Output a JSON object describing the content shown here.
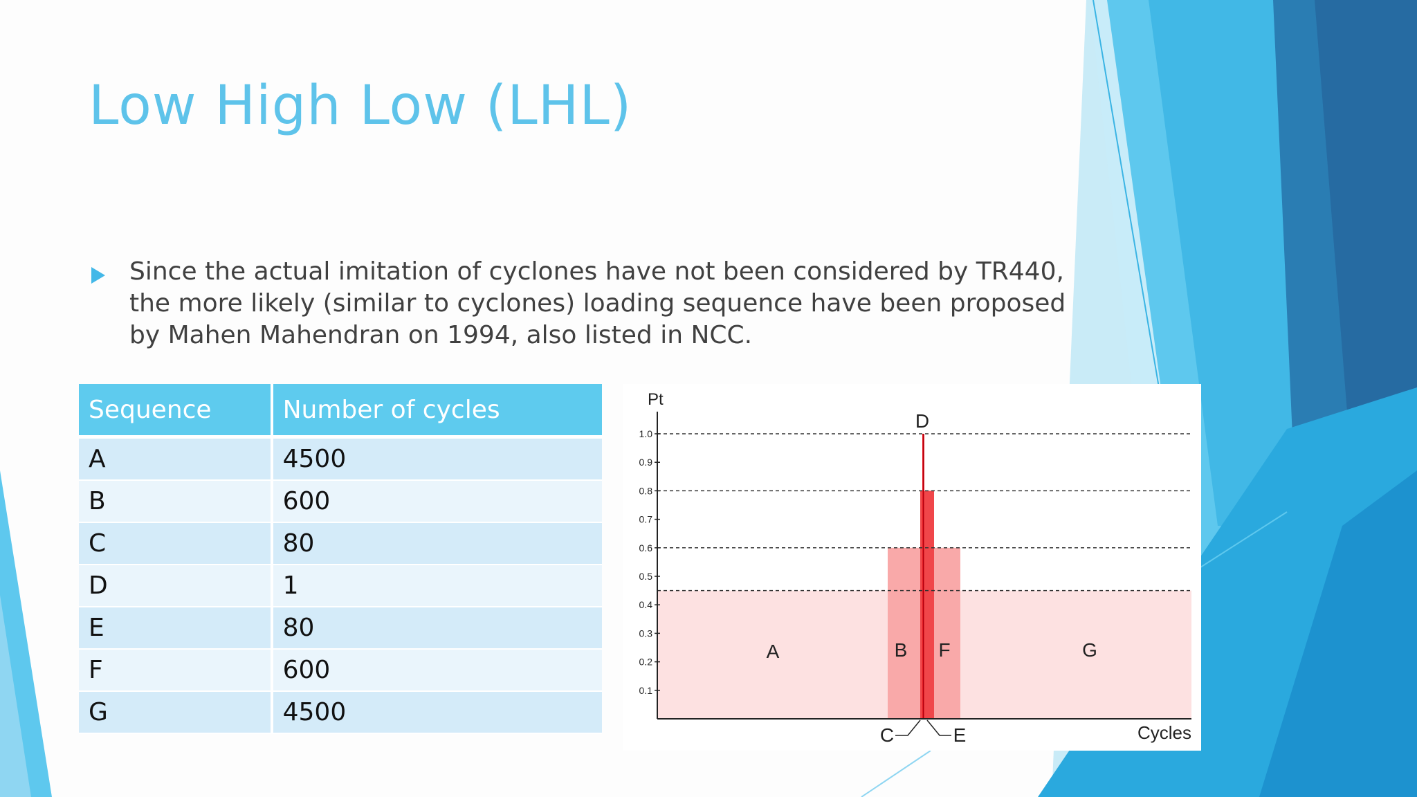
{
  "slide": {
    "title": "Low High Low (LHL)",
    "bullet": "Since the actual imitation of cyclones have not been considered by TR440, the more likely (similar to cyclones) loading sequence have been proposed by Mahen Mahendran on 1994, also listed in NCC."
  },
  "table": {
    "headers": [
      "Sequence",
      "Number of cycles"
    ],
    "rows": [
      [
        "A",
        "4500"
      ],
      [
        "B",
        "600"
      ],
      [
        "C",
        "80"
      ],
      [
        "D",
        "1"
      ],
      [
        "E",
        "80"
      ],
      [
        "F",
        "600"
      ],
      [
        "G",
        "4500"
      ]
    ]
  },
  "colors": {
    "title": "#5ec3ea",
    "table_header": "#5ecbee",
    "accent_blue": "#1f9ad6",
    "block_light": "#fde1e1",
    "block_mid": "#f9a9a9",
    "block_strong": "#f0464a",
    "spike": "#e31c23"
  },
  "chart_data": {
    "type": "bar",
    "ylabel": "Pt",
    "xlabel": "Cycles",
    "yticks": [
      "0.1",
      "0.2",
      "0.3",
      "0.4",
      "0.5",
      "0.6",
      "0.7",
      "0.8",
      "0.9",
      "1.0"
    ],
    "ylim": [
      0,
      1.0
    ],
    "reference_lines": [
      1.0,
      0.8,
      0.6,
      0.45
    ],
    "blocks": [
      {
        "label": "A",
        "level": 0.45,
        "cycles": 4500
      },
      {
        "label": "B",
        "level": 0.6,
        "cycles": 600
      },
      {
        "label": "C",
        "level": 0.8,
        "cycles": 80
      },
      {
        "label": "D",
        "level": 1.0,
        "cycles": 1
      },
      {
        "label": "E",
        "level": 0.8,
        "cycles": 80
      },
      {
        "label": "F",
        "level": 0.6,
        "cycles": 600
      },
      {
        "label": "G",
        "level": 0.45,
        "cycles": 4500
      }
    ]
  }
}
